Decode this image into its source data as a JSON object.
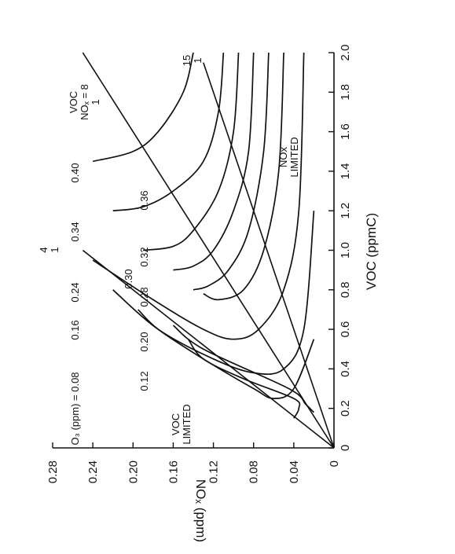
{
  "chart_data": {
    "type": "line",
    "title": "",
    "xlabel": "VOC (ppmC)",
    "ylabel": "NOₓ (ppm)",
    "xlim": [
      0,
      2.0
    ],
    "ylim": [
      0,
      0.28
    ],
    "xticks": [
      "0",
      "0.2",
      "0.4",
      "0.6",
      "0.8",
      "1.0",
      "1.2",
      "1.4",
      "1.6",
      "1.8",
      "2.0"
    ],
    "yticks": [
      "0",
      "0.04",
      "0.08",
      "0.12",
      "0.16",
      "0.20",
      "0.24",
      "0.28"
    ],
    "grid": false,
    "orientation": "rotated-90-ccw",
    "isopleths": [
      {
        "level": "0.08",
        "points": [
          [
            0.15,
            0.04
          ],
          [
            0.2,
            0.035
          ],
          [
            0.25,
            0.04
          ],
          [
            0.35,
            0.09
          ],
          [
            0.45,
            0.13
          ],
          [
            0.55,
            0.145
          ]
        ]
      },
      {
        "level": "0.12",
        "points": [
          [
            0.18,
            0.02
          ],
          [
            0.22,
            0.028
          ],
          [
            0.3,
            0.045
          ],
          [
            0.5,
            0.13
          ],
          [
            0.62,
            0.16
          ]
        ]
      },
      {
        "level": "0.16",
        "points": [
          [
            0.55,
            0.02
          ],
          [
            0.3,
            0.04
          ],
          [
            0.25,
            0.06
          ],
          [
            0.3,
            0.08
          ],
          [
            0.45,
            0.13
          ],
          [
            0.6,
            0.175
          ],
          [
            0.7,
            0.195
          ]
        ]
      },
      {
        "level": "0.20",
        "points": [
          [
            1.2,
            0.02
          ],
          [
            0.6,
            0.03
          ],
          [
            0.4,
            0.05
          ],
          [
            0.38,
            0.08
          ],
          [
            0.45,
            0.12
          ],
          [
            0.6,
            0.175
          ],
          [
            0.8,
            0.22
          ]
        ]
      },
      {
        "level": "0.24",
        "points": [
          [
            2.0,
            0.03
          ],
          [
            1.2,
            0.035
          ],
          [
            0.8,
            0.05
          ],
          [
            0.6,
            0.075
          ],
          [
            0.55,
            0.1
          ],
          [
            0.6,
            0.13
          ],
          [
            0.75,
            0.18
          ],
          [
            0.95,
            0.24
          ]
        ]
      },
      {
        "level": "0.28",
        "points": [
          [
            2.0,
            0.05
          ],
          [
            1.4,
            0.055
          ],
          [
            1.0,
            0.07
          ],
          [
            0.8,
            0.09
          ],
          [
            0.75,
            0.115
          ],
          [
            0.78,
            0.13
          ]
        ]
      },
      {
        "level": "0.30",
        "points": [
          [
            2.0,
            0.065
          ],
          [
            1.5,
            0.07
          ],
          [
            1.1,
            0.085
          ],
          [
            0.9,
            0.105
          ],
          [
            0.82,
            0.125
          ],
          [
            0.8,
            0.14
          ]
        ]
      },
      {
        "level": "0.32",
        "points": [
          [
            2.0,
            0.08
          ],
          [
            1.5,
            0.085
          ],
          [
            1.2,
            0.1
          ],
          [
            1.0,
            0.12
          ],
          [
            0.92,
            0.14
          ],
          [
            0.9,
            0.16
          ]
        ]
      },
      {
        "level": "0.34",
        "points": [
          [
            2.0,
            0.095
          ],
          [
            1.6,
            0.1
          ],
          [
            1.3,
            0.115
          ],
          [
            1.1,
            0.14
          ],
          [
            1.02,
            0.16
          ],
          [
            1.0,
            0.19
          ]
        ]
      },
      {
        "level": "0.36",
        "points": [
          [
            2.0,
            0.11
          ],
          [
            1.7,
            0.115
          ],
          [
            1.45,
            0.13
          ],
          [
            1.3,
            0.16
          ],
          [
            1.22,
            0.19
          ],
          [
            1.2,
            0.22
          ]
        ]
      },
      {
        "level": "0.40",
        "points": [
          [
            2.0,
            0.14
          ],
          [
            1.8,
            0.15
          ],
          [
            1.6,
            0.175
          ],
          [
            1.5,
            0.2
          ],
          [
            1.45,
            0.24
          ]
        ]
      }
    ],
    "rays": [
      {
        "label": "4/1",
        "points": [
          [
            0,
            0
          ],
          [
            1.0,
            0.25
          ]
        ]
      },
      {
        "label": "8/1",
        "points": [
          [
            0,
            0
          ],
          [
            2.0,
            0.25
          ]
        ]
      },
      {
        "label": "15/1",
        "points": [
          [
            0,
            0
          ],
          [
            1.95,
            0.13
          ]
        ]
      }
    ],
    "level_labels": [
      "O₃ (ppm) = 0.08",
      "0.12",
      "0.16",
      "0.20",
      "0.24",
      "0.28",
      "0.30",
      "0.32",
      "0.34",
      "0.36",
      "0.40"
    ],
    "annotations": {
      "voc_limited": "VOC\nLIMITED",
      "nox_limited": "NOx\nLIMITED",
      "ratio_4": "4\n1",
      "ratio_8": "VOC\nNOₓ = 8\n1",
      "ratio_15": "15\n1"
    },
    "colors": {
      "ink": "#111111",
      "background": "#ffffff"
    }
  }
}
